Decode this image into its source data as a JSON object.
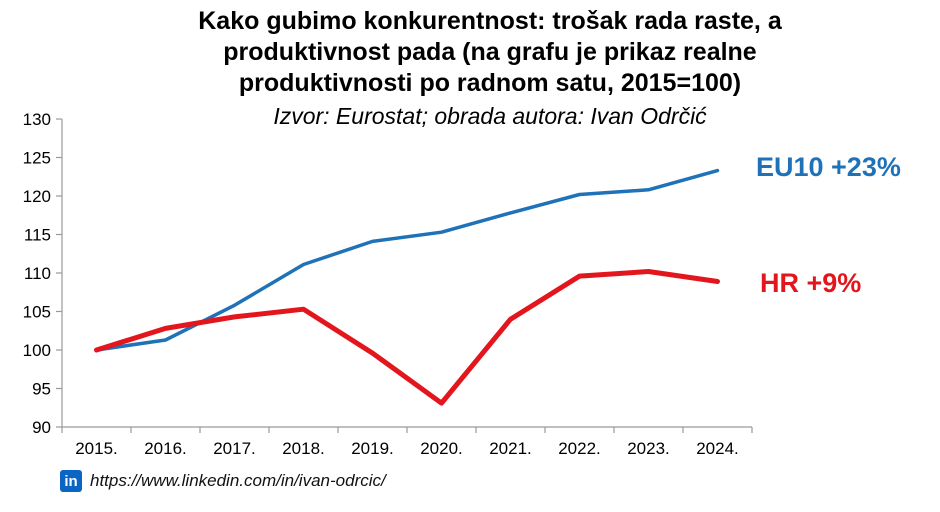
{
  "chart_data": {
    "type": "line",
    "title_lines": [
      "Kako gubimo konkurentnost: trošak rada raste, a",
      "produktivnost pada (na grafu je prikaz realne",
      "produktivnosti po radnom satu, 2015=100)"
    ],
    "subtitle": "Izvor: Eurostat; obrada autora: Ivan Odrčić",
    "categories": [
      "2015.",
      "2016.",
      "2017.",
      "2018.",
      "2019.",
      "2020.",
      "2021.",
      "2022.",
      "2023.",
      "2024."
    ],
    "ylim": [
      90,
      130
    ],
    "yticks": [
      90,
      95,
      100,
      105,
      110,
      115,
      120,
      125,
      130
    ],
    "grid": false,
    "series": [
      {
        "name": "EU10",
        "label": "EU10 +23%",
        "color": "#1f72b8",
        "values": [
          100,
          101.3,
          105.8,
          111.1,
          114.1,
          115.3,
          117.8,
          120.2,
          120.8,
          123.3
        ]
      },
      {
        "name": "HR",
        "label": "HR +9%",
        "color": "#e2161c",
        "values": [
          100,
          102.8,
          104.3,
          105.3,
          99.6,
          93.1,
          104.0,
          109.6,
          110.2,
          108.9
        ]
      }
    ]
  },
  "footer": {
    "icon": "linkedin-icon",
    "icon_text": "in",
    "url": "https://www.linkedin.com/in/ivan-odrcic/"
  }
}
